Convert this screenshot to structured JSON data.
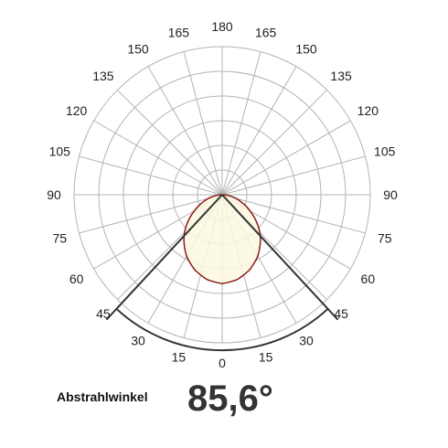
{
  "chart_data": {
    "type": "polar",
    "angle_labels": {
      "left": [
        "0",
        "15",
        "30",
        "45",
        "60",
        "75",
        "90",
        "105",
        "120",
        "135",
        "150",
        "165",
        "180"
      ],
      "right": [
        "15",
        "30",
        "45",
        "60",
        "75",
        "90",
        "105",
        "120",
        "135",
        "150",
        "165"
      ]
    },
    "angle_values": [
      0,
      15,
      30,
      45,
      60,
      75,
      90,
      105,
      120,
      135,
      150,
      165,
      180
    ],
    "radial_rings": 6,
    "beam_angle_deg": 85.6,
    "distribution_curve": {
      "angles": [
        0,
        10,
        20,
        30,
        40,
        45,
        50,
        60,
        70,
        80,
        90
      ],
      "relative_intensity": [
        1.0,
        0.97,
        0.9,
        0.8,
        0.67,
        0.6,
        0.52,
        0.36,
        0.22,
        0.1,
        0.0
      ]
    },
    "colors": {
      "grid": "#b3b3b3",
      "curve_stroke": "#8b1a1a",
      "curve_fill": "#fbf8df",
      "beam_lines": "#333333"
    }
  },
  "caption": {
    "label": "Abstrahlwinkel",
    "value": "85,6°"
  }
}
